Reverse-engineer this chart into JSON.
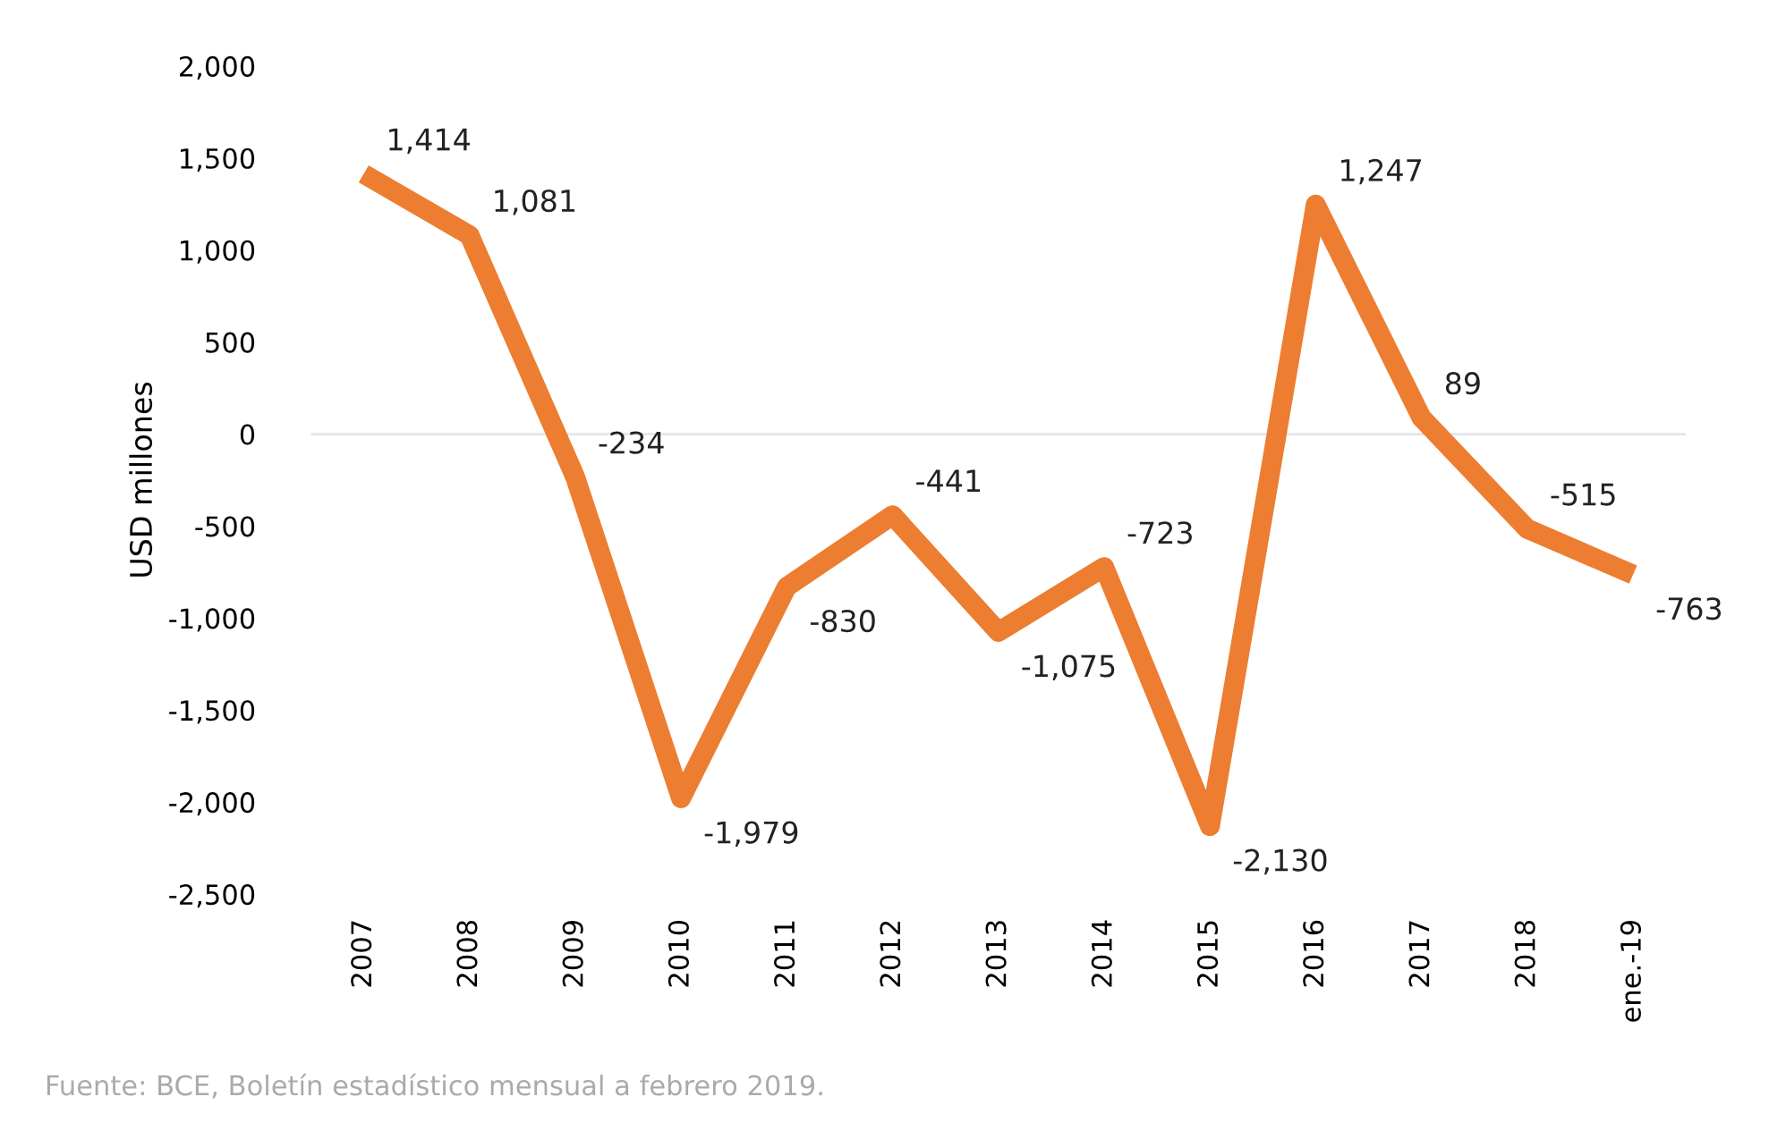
{
  "chart_data": {
    "type": "line",
    "ylabel": "USD millones",
    "categories": [
      "2007",
      "2008",
      "2009",
      "2010",
      "2011",
      "2012",
      "2013",
      "2014",
      "2015",
      "2016",
      "2017",
      "2018",
      "ene.-19"
    ],
    "series": [
      {
        "color": "#ed7d31",
        "values": [
          1414,
          1081,
          -234,
          -1979,
          -830,
          -441,
          -1075,
          -723,
          -2130,
          1247,
          89,
          -515,
          -763
        ],
        "value_labels": [
          "1,414",
          "1,081",
          "-234",
          "-1,979",
          "-830",
          "-441",
          "-1,075",
          "-723",
          "-2,130",
          "1,247",
          "89",
          "-515",
          "-763"
        ]
      }
    ],
    "ylim": [
      -2500,
      2000
    ],
    "yticks": [
      {
        "value": 2000,
        "label": "2,000"
      },
      {
        "value": 1500,
        "label": "1,500"
      },
      {
        "value": 1000,
        "label": "1,000"
      },
      {
        "value": 500,
        "label": "500"
      },
      {
        "value": 0,
        "label": "0"
      },
      {
        "value": -500,
        "label": "-500"
      },
      {
        "value": -1000,
        "label": "-1,000"
      },
      {
        "value": -1500,
        "label": "-1,500"
      },
      {
        "value": -2000,
        "label": "-2,000"
      },
      {
        "value": -2500,
        "label": "-2,500"
      }
    ],
    "ref_lines": [
      {
        "axis": "y",
        "value": 0,
        "color": "#e6e6e6"
      }
    ],
    "grid": false,
    "legend": false,
    "marker": "none",
    "line_style": "solid",
    "annotations": [
      "Fuente: BCE, Boletín estadístico mensual a febrero 2019."
    ]
  }
}
